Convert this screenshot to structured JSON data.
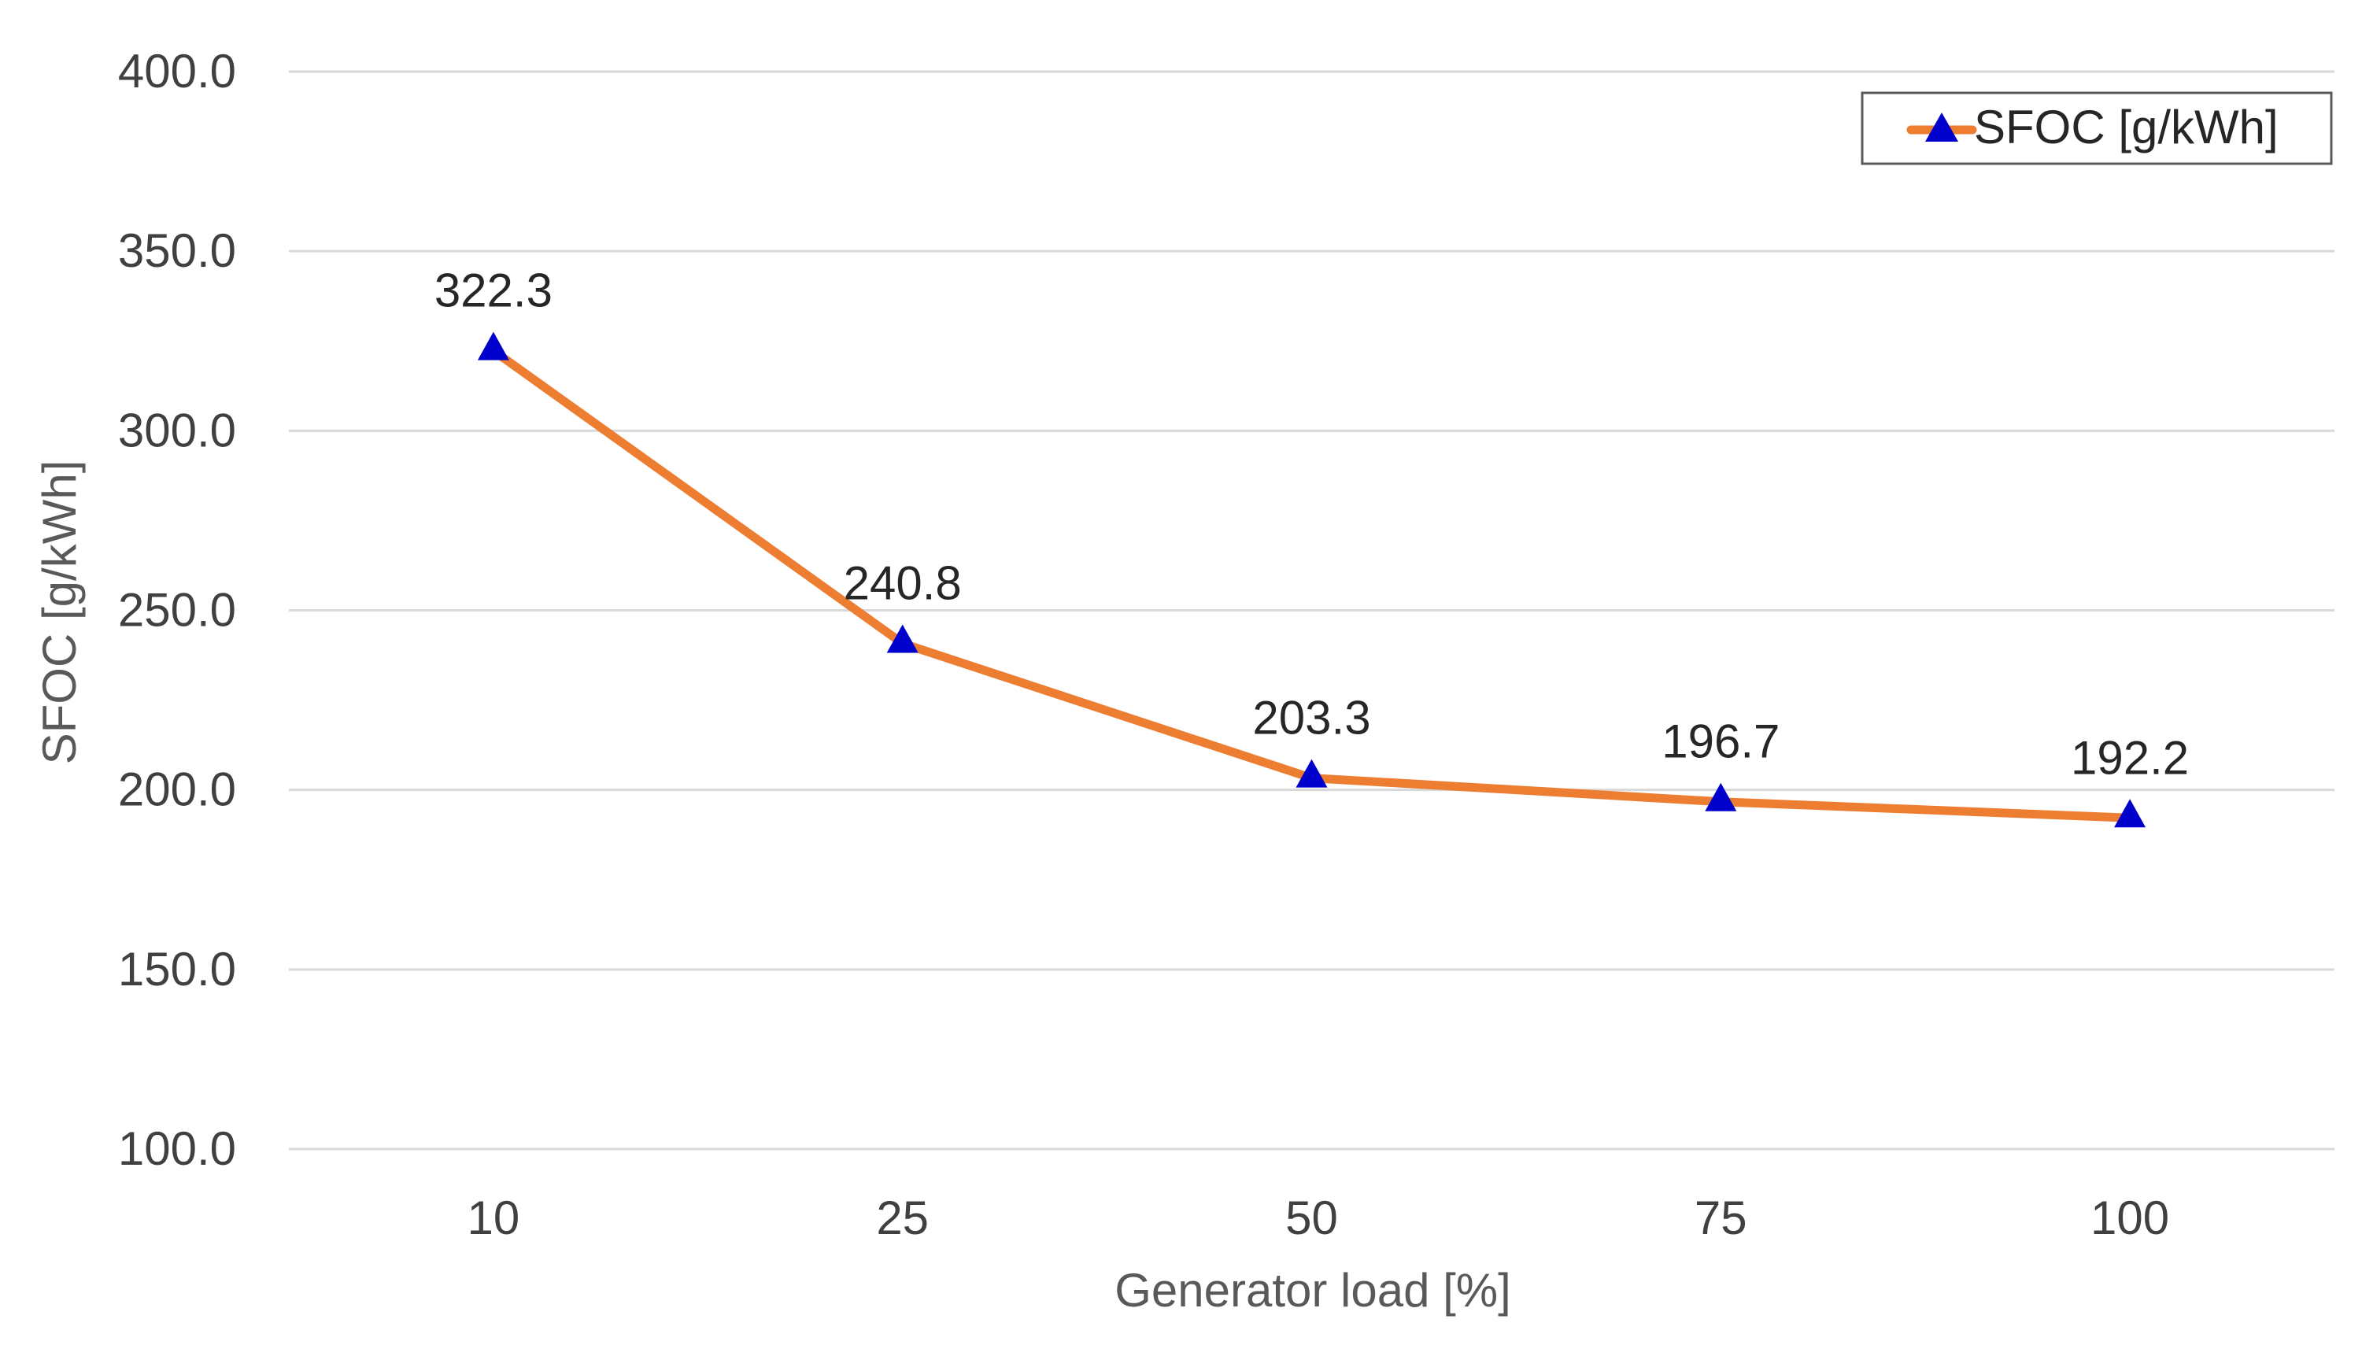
{
  "chart_data": {
    "type": "line",
    "title": "",
    "xlabel": "Generator load [%]",
    "ylabel": "SFOC [g/kWh]",
    "ylim": [
      100,
      400
    ],
    "yticks": [
      "100.0",
      "150.0",
      "200.0",
      "250.0",
      "300.0",
      "350.0",
      "400.0"
    ],
    "ytick_values": [
      100,
      150,
      200,
      250,
      300,
      350,
      400
    ],
    "categories": [
      "10",
      "25",
      "50",
      "75",
      "100"
    ],
    "grid": true,
    "legend_position": "top-right",
    "series": [
      {
        "name": "SFOC [g/kWh]",
        "values": [
          322.3,
          240.8,
          203.3,
          196.7,
          192.2
        ],
        "labels": [
          "322.3",
          "240.8",
          "203.3",
          "196.7",
          "192.2"
        ],
        "line_color": "#ED7D31",
        "marker": "triangle",
        "marker_color": "#0000CC"
      }
    ],
    "colors": {
      "grid": "#D9D9D9",
      "legend_border": "#595959"
    }
  }
}
